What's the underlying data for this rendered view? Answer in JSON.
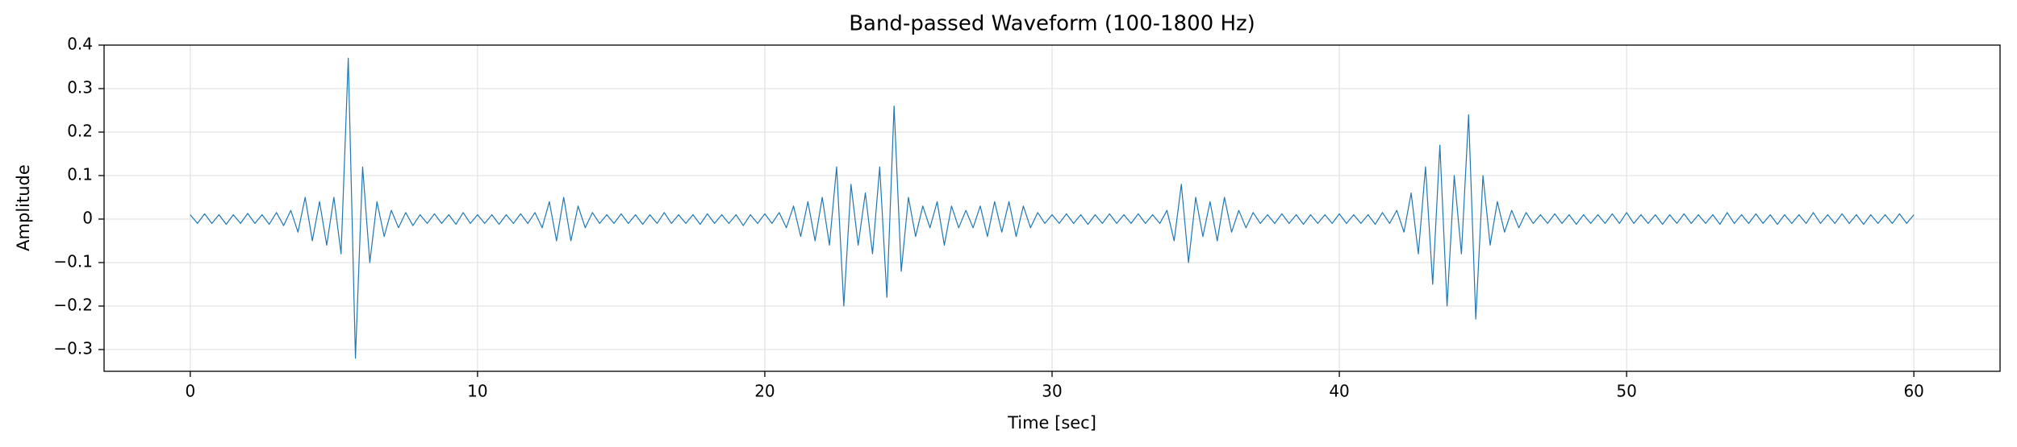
{
  "chart_data": {
    "type": "line",
    "title": "Band-passed Waveform (100-1800 Hz)",
    "x_label": "Time [sec]",
    "y_label": "Amplitude",
    "x": [
      0,
      0.25,
      0.5,
      0.75,
      1,
      1.25,
      1.5,
      1.75,
      2,
      2.25,
      2.5,
      2.75,
      3,
      3.25,
      3.5,
      3.75,
      4,
      4.25,
      4.5,
      4.75,
      5,
      5.25,
      5.5,
      5.75,
      6,
      6.25,
      6.5,
      6.75,
      7,
      7.25,
      7.5,
      7.75,
      8,
      8.25,
      8.5,
      8.75,
      9,
      9.25,
      9.5,
      9.75,
      10,
      10.25,
      10.5,
      10.75,
      11,
      11.25,
      11.5,
      11.75,
      12,
      12.25,
      12.5,
      12.75,
      13,
      13.25,
      13.5,
      13.75,
      14,
      14.25,
      14.5,
      14.75,
      15,
      15.25,
      15.5,
      15.75,
      16,
      16.25,
      16.5,
      16.75,
      17,
      17.25,
      17.5,
      17.75,
      18,
      18.25,
      18.5,
      18.75,
      19,
      19.25,
      19.5,
      19.75,
      20,
      20.25,
      20.5,
      20.75,
      21,
      21.25,
      21.5,
      21.75,
      22,
      22.25,
      22.5,
      22.75,
      23,
      23.25,
      23.5,
      23.75,
      24,
      24.25,
      24.5,
      24.75,
      25,
      25.25,
      25.5,
      25.75,
      26,
      26.25,
      26.5,
      26.75,
      27,
      27.25,
      27.5,
      27.75,
      28,
      28.25,
      28.5,
      28.75,
      29,
      29.25,
      29.5,
      29.75,
      30,
      30.25,
      30.5,
      30.75,
      31,
      31.25,
      31.5,
      31.75,
      32,
      32.25,
      32.5,
      32.75,
      33,
      33.25,
      33.5,
      33.75,
      34,
      34.25,
      34.5,
      34.75,
      35,
      35.25,
      35.5,
      35.75,
      36,
      36.25,
      36.5,
      36.75,
      37,
      37.25,
      37.5,
      37.75,
      38,
      38.25,
      38.5,
      38.75,
      39,
      39.25,
      39.5,
      39.75,
      40,
      40.25,
      40.5,
      40.75,
      41,
      41.25,
      41.5,
      41.75,
      42,
      42.25,
      42.5,
      42.75,
      43,
      43.25,
      43.5,
      43.75,
      44,
      44.25,
      44.5,
      44.75,
      45,
      45.25,
      45.5,
      45.75,
      46,
      46.25,
      46.5,
      46.75,
      47,
      47.25,
      47.5,
      47.75,
      48,
      48.25,
      48.5,
      48.75,
      49,
      49.25,
      49.5,
      49.75,
      50,
      50.25,
      50.5,
      50.75,
      51,
      51.25,
      51.5,
      51.75,
      52,
      52.25,
      52.5,
      52.75,
      53,
      53.25,
      53.5,
      53.75,
      54,
      54.25,
      54.5,
      54.75,
      55,
      55.25,
      55.5,
      55.75,
      56,
      56.25,
      56.5,
      56.75,
      57,
      57.25,
      57.5,
      57.75,
      58,
      58.25,
      58.5,
      58.75,
      59,
      59.25,
      59.5,
      59.75,
      60
    ],
    "series": [
      {
        "color": "#1f77b4",
        "values": [
          0.01,
          -0.01,
          0.012,
          -0.01,
          0.01,
          -0.012,
          0.01,
          -0.01,
          0.013,
          -0.01,
          0.01,
          -0.012,
          0.015,
          -0.015,
          0.02,
          -0.03,
          0.05,
          -0.05,
          0.04,
          -0.06,
          0.05,
          -0.08,
          0.37,
          -0.32,
          0.12,
          -0.1,
          0.04,
          -0.04,
          0.02,
          -0.02,
          0.015,
          -0.015,
          0.01,
          -0.01,
          0.012,
          -0.01,
          0.01,
          -0.012,
          0.015,
          -0.01,
          0.01,
          -0.01,
          0.01,
          -0.012,
          0.01,
          -0.01,
          0.012,
          -0.01,
          0.015,
          -0.02,
          0.04,
          -0.05,
          0.05,
          -0.05,
          0.03,
          -0.02,
          0.015,
          -0.01,
          0.01,
          -0.01,
          0.012,
          -0.01,
          0.01,
          -0.012,
          0.01,
          -0.01,
          0.015,
          -0.01,
          0.01,
          -0.01,
          0.01,
          -0.012,
          0.012,
          -0.01,
          0.01,
          -0.01,
          0.01,
          -0.015,
          0.01,
          -0.01,
          0.012,
          -0.01,
          0.015,
          -0.02,
          0.03,
          -0.04,
          0.04,
          -0.05,
          0.05,
          -0.06,
          0.12,
          -0.2,
          0.08,
          -0.06,
          0.06,
          -0.08,
          0.12,
          -0.18,
          0.26,
          -0.12,
          0.05,
          -0.04,
          0.03,
          -0.02,
          0.04,
          -0.06,
          0.03,
          -0.02,
          0.02,
          -0.02,
          0.03,
          -0.04,
          0.04,
          -0.03,
          0.04,
          -0.04,
          0.03,
          -0.02,
          0.015,
          -0.01,
          0.01,
          -0.01,
          0.012,
          -0.01,
          0.01,
          -0.012,
          0.01,
          -0.01,
          0.012,
          -0.01,
          0.01,
          -0.01,
          0.012,
          -0.01,
          0.01,
          -0.01,
          0.02,
          -0.05,
          0.08,
          -0.1,
          0.05,
          -0.04,
          0.04,
          -0.05,
          0.05,
          -0.03,
          0.02,
          -0.02,
          0.015,
          -0.01,
          0.01,
          -0.01,
          0.012,
          -0.01,
          0.01,
          -0.012,
          0.01,
          -0.01,
          0.01,
          -0.01,
          0.012,
          -0.01,
          0.01,
          -0.01,
          0.01,
          -0.012,
          0.015,
          -0.01,
          0.02,
          -0.03,
          0.06,
          -0.08,
          0.12,
          -0.15,
          0.17,
          -0.2,
          0.1,
          -0.08,
          0.24,
          -0.23,
          0.1,
          -0.06,
          0.04,
          -0.03,
          0.02,
          -0.02,
          0.015,
          -0.01,
          0.01,
          -0.01,
          0.012,
          -0.01,
          0.01,
          -0.012,
          0.01,
          -0.01,
          0.01,
          -0.01,
          0.012,
          -0.01,
          0.015,
          -0.01,
          0.01,
          -0.01,
          0.01,
          -0.012,
          0.01,
          -0.01,
          0.012,
          -0.01,
          0.01,
          -0.01,
          0.01,
          -0.012,
          0.015,
          -0.01,
          0.01,
          -0.01,
          0.012,
          -0.01,
          0.01,
          -0.012,
          0.01,
          -0.01,
          0.01,
          -0.01,
          0.015,
          -0.01,
          0.01,
          -0.01,
          0.012,
          -0.01,
          0.01,
          -0.012,
          0.01,
          -0.01,
          0.01,
          -0.01,
          0.012,
          -0.01,
          0.01
        ]
      }
    ],
    "xlim": [
      -3,
      63
    ],
    "ylim": [
      -0.35,
      0.4
    ],
    "xticks": [
      0,
      10,
      20,
      30,
      40,
      50,
      60
    ],
    "yticks": [
      {
        "value": -0.3,
        "label": "−0.3"
      },
      {
        "value": -0.2,
        "label": "−0.2"
      },
      {
        "value": -0.1,
        "label": "−0.1"
      },
      0.0,
      0.1,
      0.2,
      0.3,
      0.4
    ],
    "grid": true
  }
}
